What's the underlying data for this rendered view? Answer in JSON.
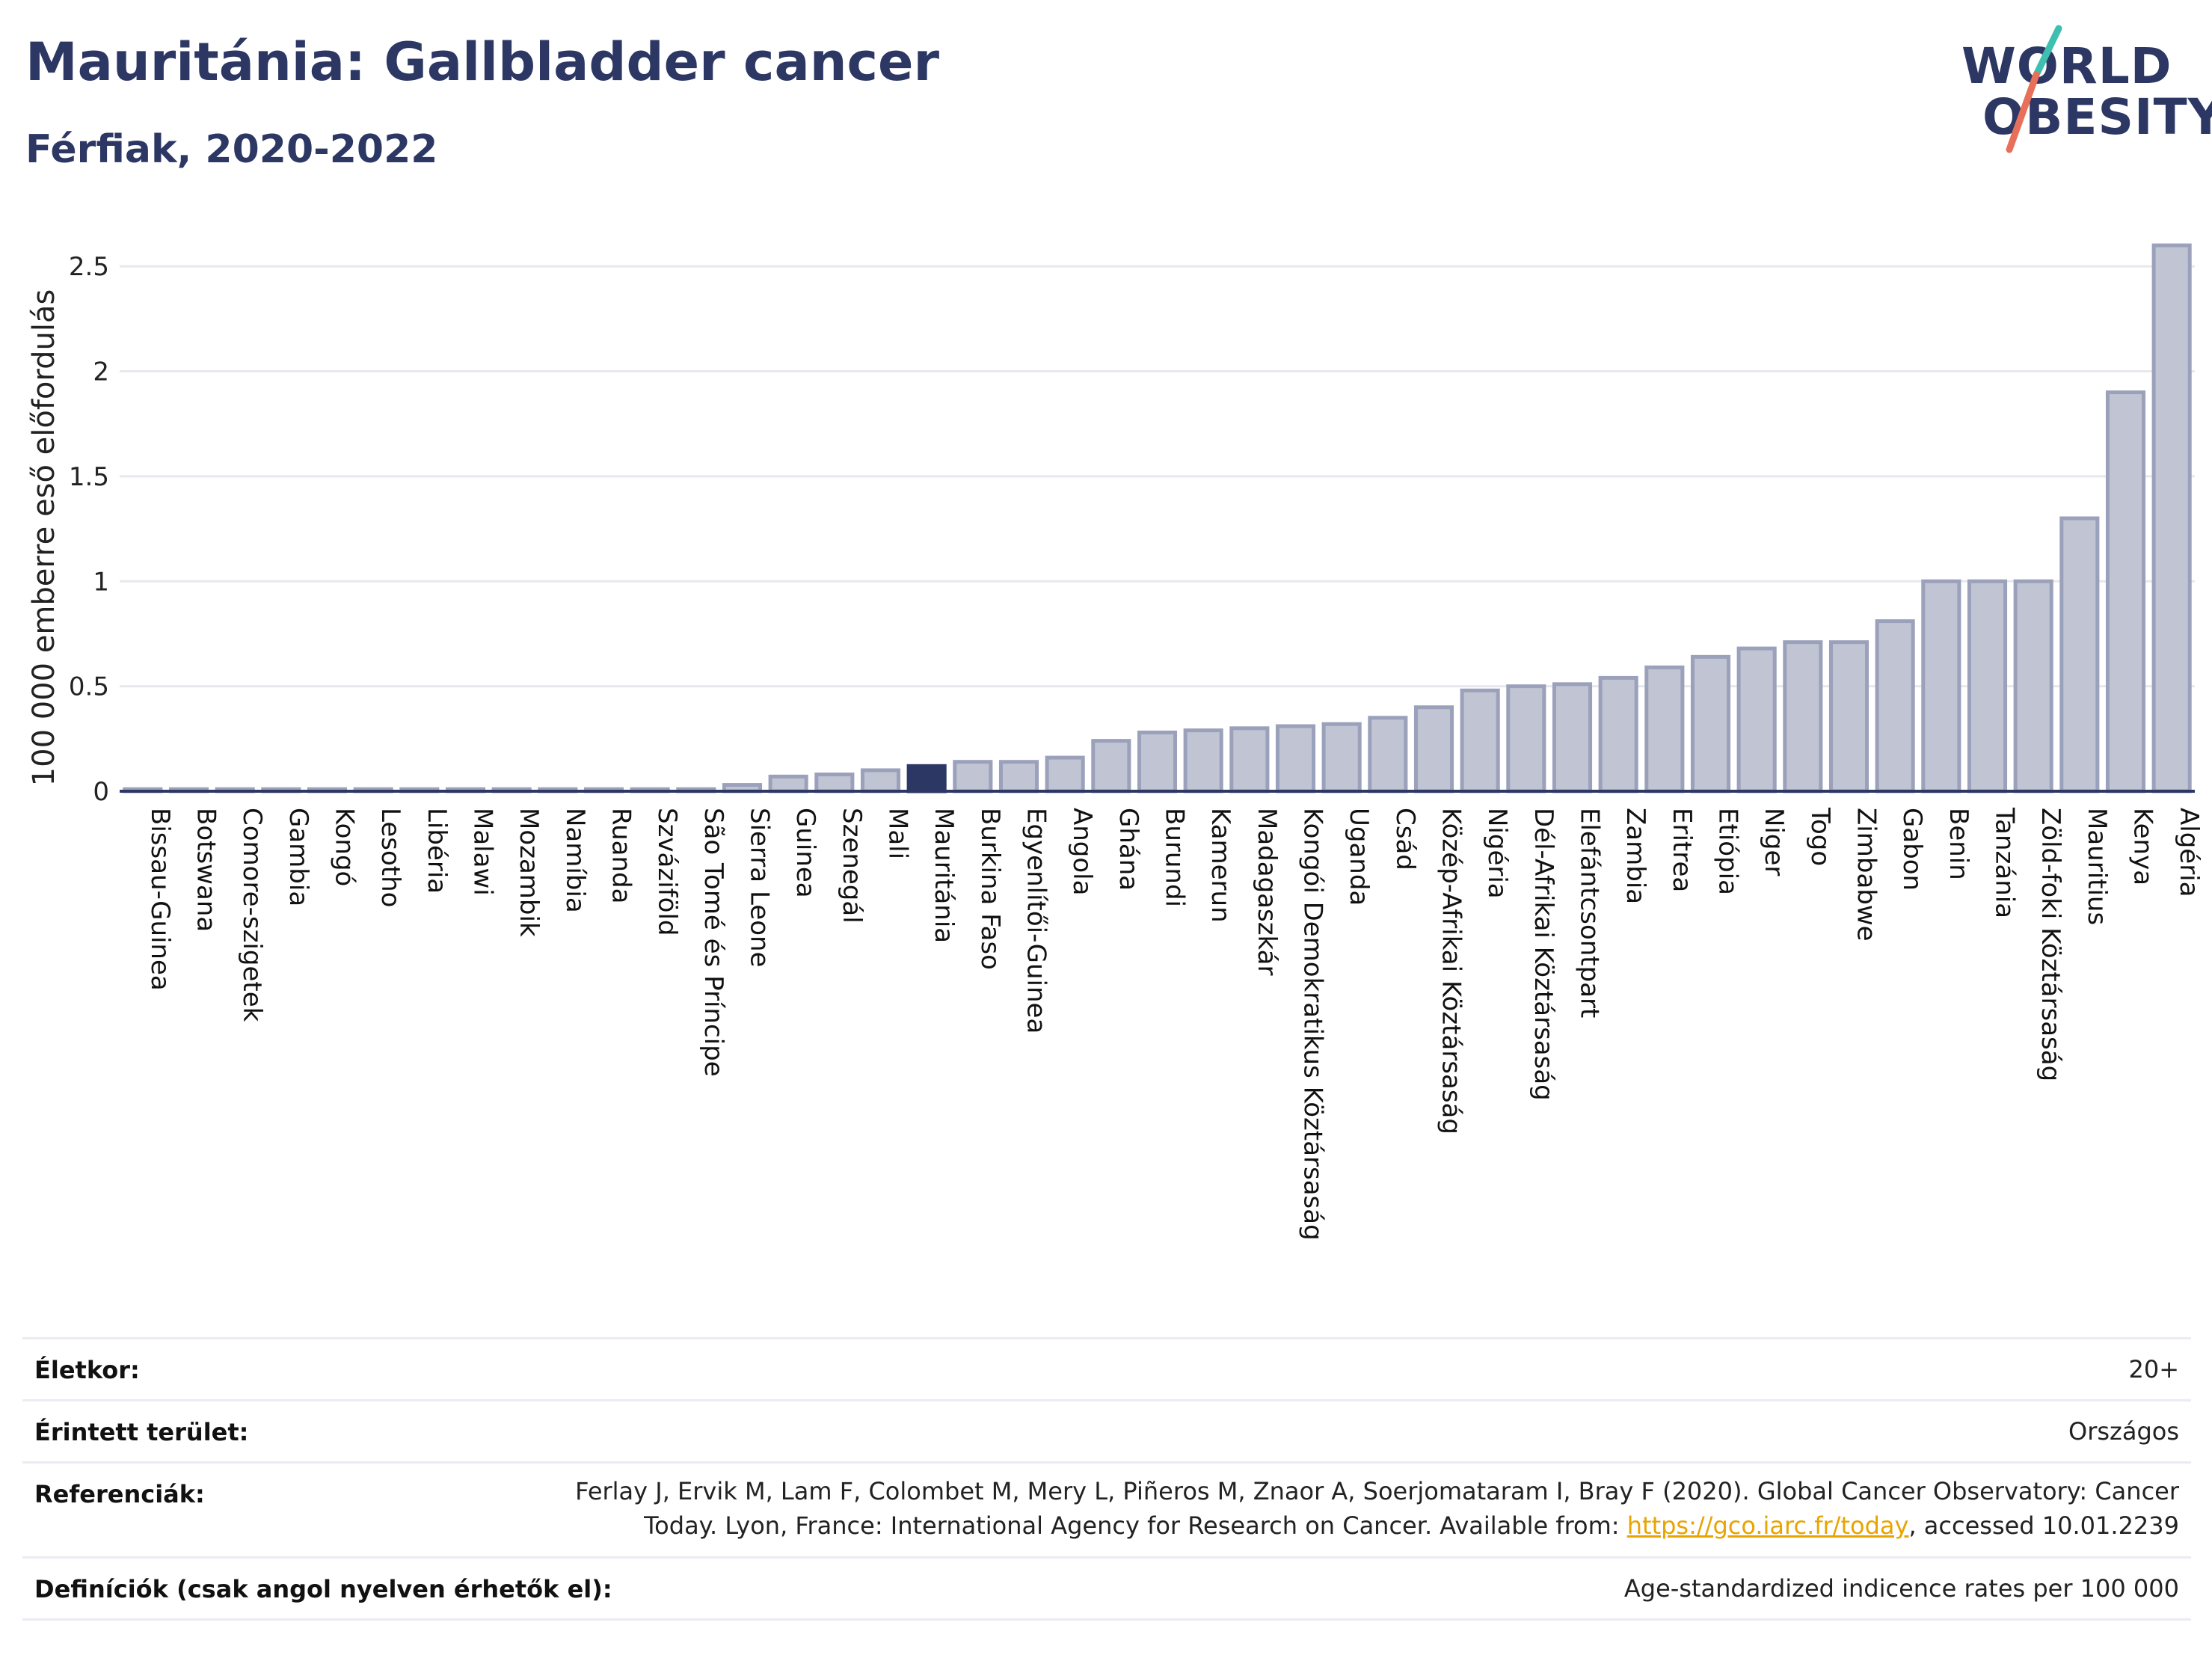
{
  "header": {
    "title": "Mauritánia: Gallbladder cancer",
    "subtitle": "Férfiak, 2020-2022"
  },
  "logo": {
    "line1": "WORLD",
    "line2": "OBESITY",
    "colors": {
      "text": "#2c3764",
      "slash_top": "#3fbfb0",
      "slash_bottom": "#e8705a"
    }
  },
  "chart_data": {
    "type": "bar",
    "ylabel": "100 000 emberre eső előfordulás",
    "ylim": [
      0,
      2.7
    ],
    "yticks": [
      0,
      0.5,
      1,
      1.5,
      2,
      2.5
    ],
    "ytick_labels": [
      "0",
      "0.5",
      "1",
      "1.5",
      "2",
      "2.5"
    ],
    "grid": true,
    "highlight": "Mauritánia",
    "colors": {
      "bar": "#c0c4d3",
      "bar_edge": "#9ba1bb",
      "highlight": "#2c3764",
      "axis": "#2c3764"
    },
    "categories": [
      "Bissau-Guinea",
      "Botswana",
      "Comore-szigetek",
      "Gambia",
      "Kongó",
      "Lesotho",
      "Libéria",
      "Malawi",
      "Mozambik",
      "Namíbia",
      "Ruanda",
      "Szváziföld",
      "São Tomé és Príncipe",
      "Sierra Leone",
      "Guinea",
      "Szenegál",
      "Mali",
      "Mauritánia",
      "Burkina Faso",
      "Egyenlítői-Guinea",
      "Angola",
      "Ghána",
      "Burundi",
      "Kamerun",
      "Madagaszkár",
      "Kongói Demokratikus Köztársaság",
      "Uganda",
      "Csád",
      "Közép-Afrikai Köztársaság",
      "Nigéria",
      "Dél-Afrikai Köztársaság",
      "Elefántcsontpart",
      "Zambia",
      "Eritrea",
      "Etiópia",
      "Niger",
      "Togo",
      "Zimbabwe",
      "Gabon",
      "Benin",
      "Tanzánia",
      "Zöld-foki Köztársaság",
      "Mauritius",
      "Kenya",
      "Algéria"
    ],
    "values": [
      0.01,
      0.01,
      0.01,
      0.01,
      0.01,
      0.01,
      0.01,
      0.01,
      0.01,
      0.01,
      0.01,
      0.01,
      0.01,
      0.03,
      0.07,
      0.08,
      0.1,
      0.12,
      0.14,
      0.14,
      0.16,
      0.24,
      0.28,
      0.29,
      0.3,
      0.31,
      0.32,
      0.35,
      0.4,
      0.48,
      0.5,
      0.51,
      0.54,
      0.59,
      0.64,
      0.68,
      0.71,
      0.71,
      0.81,
      1.0,
      1.0,
      1.0,
      1.3,
      1.9,
      2.6
    ]
  },
  "info": {
    "rows": [
      {
        "key": "Életkor:",
        "value": "20+"
      },
      {
        "key": "Érintett terület:",
        "value": "Országos"
      },
      {
        "key": "Referenciák:",
        "value_line1": "Ferlay J, Ervik M, Lam F, Colombet M, Mery L, Piñeros M, Znaor A, Soerjomataram I, Bray F (2020). Global Cancer Observatory: Cancer",
        "value_line2_pre": "Today. Lyon, France: International Agency for Research on Cancer. Available from: ",
        "value_link": "https://gco.iarc.fr/today",
        "value_line2_post": ", accessed 10.01.2239"
      },
      {
        "key": "Definíciók (csak angol nyelven érhetők el):",
        "value": "Age-standardized indicence rates per 100 000"
      }
    ]
  }
}
